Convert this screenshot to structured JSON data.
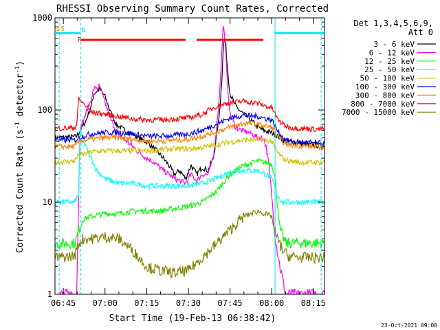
{
  "chart_data": {
    "type": "line",
    "title": "RHESSI Observing Summary Count Rates, Corrected",
    "xlabel": "Start Time (19-Feb-13 06:38:42)",
    "ylabel": "Corrected Count Rate (s⁻¹ detector⁻¹)",
    "ylabel_parts": [
      "Corrected Count Rate (s",
      "-1",
      " detector",
      "-1",
      ")"
    ],
    "ylog": true,
    "ylim": [
      1,
      1000
    ],
    "xlim_min": [
      402,
      499
    ],
    "x_tick_labels": [
      "06:45",
      "07:00",
      "07:15",
      "07:30",
      "07:45",
      "08:00",
      "08:15"
    ],
    "x_tick_min": [
      405,
      420,
      435,
      450,
      465,
      480,
      495
    ],
    "y_tick_labels": [
      "1",
      "10",
      "100",
      "1000"
    ],
    "y_tick_values": [
      1,
      10,
      100,
      1000
    ],
    "legend_header": [
      "Det 1,3,4,5,6,9,",
      "Att 0"
    ],
    "footer_date": "23-Oct-2021 09:08",
    "state_bars": [
      {
        "label": "I",
        "color": "#d4a017",
        "kind": "text"
      },
      {
        "label": "S",
        "color": "#d4a017",
        "kind": "text"
      },
      {
        "label": "N",
        "color": "#00e5ee",
        "segments": [
          [
            402,
            411
          ],
          [
            481,
            499
          ]
        ]
      },
      {
        "label": "F",
        "color": "#ff0000",
        "segments": [
          [
            411,
            449
          ],
          [
            453,
            477
          ]
        ]
      }
    ],
    "vlines": [
      {
        "x": 403.5,
        "color": "#00e5ee",
        "dash": true
      },
      {
        "x": 411.3,
        "color": "#00e5ee",
        "dash": true
      },
      {
        "x": 481.2,
        "color": "#00e5ee",
        "dash": false
      },
      {
        "x": 497.8,
        "color": "#00e5ee",
        "dash": true
      }
    ],
    "series": [
      {
        "name": "3 - 6 keV",
        "color": "#000000",
        "x": [
          402,
          409,
          409.8,
          411,
          413,
          415,
          416,
          418,
          420,
          422,
          424,
          427,
          430,
          432,
          435,
          437,
          439,
          441,
          443,
          445,
          447,
          449,
          451,
          453,
          455,
          457,
          459,
          461,
          462,
          462.5,
          463,
          463.5,
          464,
          465,
          467,
          469,
          471,
          473,
          475,
          477,
          479,
          481,
          483,
          485,
          487,
          489,
          491,
          493,
          495,
          497,
          499
        ],
        "y": [
          50,
          51,
          52,
          60,
          75,
          110,
          150,
          170,
          140,
          95,
          70,
          60,
          55,
          50,
          45,
          40,
          35,
          30,
          25,
          20,
          22,
          18,
          25,
          20,
          24,
          22,
          30,
          80,
          200,
          450,
          600,
          500,
          300,
          150,
          110,
          95,
          85,
          75,
          65,
          60,
          58,
          55,
          50,
          45,
          45,
          44,
          43,
          42,
          42,
          41,
          40
        ]
      },
      {
        "name": "6 - 12 keV",
        "color": "#ff00ff",
        "x": [
          402,
          409,
          409.8,
          411,
          413,
          415,
          416,
          418,
          420,
          422,
          424,
          427,
          430,
          432,
          435,
          437,
          439,
          441,
          443,
          445,
          447,
          449,
          451,
          453,
          455,
          457,
          459,
          461,
          462,
          462.5,
          463,
          463.5,
          464,
          465,
          467,
          469,
          471,
          473,
          475,
          477,
          478,
          479,
          480,
          481,
          482,
          483,
          485,
          487,
          489,
          491,
          493,
          495,
          497,
          499
        ],
        "y": [
          1,
          1,
          1,
          60,
          90,
          130,
          170,
          180,
          120,
          80,
          60,
          48,
          40,
          35,
          30,
          28,
          25,
          22,
          20,
          18,
          17,
          16,
          20,
          17,
          20,
          20,
          30,
          120,
          400,
          800,
          700,
          400,
          200,
          90,
          65,
          60,
          58,
          55,
          50,
          50,
          40,
          25,
          12,
          5,
          3,
          2,
          1,
          1,
          1,
          1,
          1,
          1,
          1,
          1
        ]
      },
      {
        "name": "12 - 25 keV",
        "color": "#00ff00",
        "x": [
          402,
          409,
          409.8,
          410.5,
          412,
          415,
          420,
          425,
          430,
          435,
          440,
          445,
          450,
          455,
          460,
          465,
          470,
          475,
          480,
          481,
          482,
          483,
          485,
          490,
          495,
          499
        ],
        "y": [
          3.5,
          3.6,
          4,
          5,
          6.5,
          7,
          7.5,
          7.5,
          8,
          8,
          8,
          8.5,
          9,
          10,
          13,
          20,
          25,
          28,
          26,
          20,
          10,
          5,
          3.6,
          3.6,
          3.6,
          3.6
        ]
      },
      {
        "name": "25 - 50 keV",
        "color": "#00ffff",
        "x": [
          402,
          409,
          409.8,
          410.5,
          411,
          413,
          415,
          417,
          420,
          425,
          430,
          435,
          440,
          445,
          450,
          455,
          460,
          463,
          466,
          470,
          475,
          478,
          480,
          481,
          482,
          484,
          486,
          490,
          495,
          499
        ],
        "y": [
          10,
          10,
          11,
          12,
          60,
          40,
          30,
          22,
          18,
          16,
          16,
          15,
          15,
          15,
          15,
          16,
          18,
          20,
          22,
          22,
          22,
          20,
          18,
          15,
          12,
          10,
          10,
          10,
          10,
          10
        ]
      },
      {
        "name": "50 - 100 keV",
        "color": "#d4c000",
        "x": [
          402,
          409,
          409.8,
          410.5,
          412,
          415,
          420,
          425,
          430,
          435,
          440,
          445,
          450,
          455,
          460,
          465,
          470,
          475,
          480,
          481,
          482,
          484,
          486,
          490,
          495,
          499
        ],
        "y": [
          27,
          28,
          30,
          33,
          33,
          35,
          36,
          36,
          36,
          36,
          37,
          38,
          38,
          39,
          42,
          45,
          47,
          48,
          46,
          40,
          35,
          30,
          28,
          27,
          27,
          27
        ]
      },
      {
        "name": "100 - 300 keV",
        "color": "#0000ff",
        "x": [
          402,
          409,
          409.8,
          410.5,
          412,
          415,
          420,
          425,
          430,
          435,
          440,
          445,
          450,
          455,
          460,
          465,
          470,
          475,
          480,
          481,
          482,
          484,
          486,
          490,
          495,
          499
        ],
        "y": [
          47,
          47,
          48,
          50,
          52,
          55,
          57,
          57,
          55,
          52,
          52,
          53,
          55,
          60,
          70,
          82,
          88,
          85,
          78,
          70,
          60,
          50,
          46,
          45,
          44,
          43
        ]
      },
      {
        "name": "300 - 800 keV",
        "color": "#ff8000",
        "x": [
          402,
          409,
          409.8,
          410.5,
          412,
          415,
          420,
          425,
          430,
          435,
          440,
          445,
          450,
          455,
          460,
          465,
          470,
          475,
          480,
          481,
          482,
          484,
          486,
          490,
          495,
          499
        ],
        "y": [
          40,
          40,
          42,
          45,
          47,
          48,
          50,
          50,
          48,
          46,
          46,
          47,
          48,
          52,
          58,
          65,
          72,
          70,
          65,
          60,
          52,
          45,
          42,
          41,
          40,
          39
        ]
      },
      {
        "name": "800 - 7000 keV",
        "color": "#ff0000",
        "x": [
          402,
          409,
          409.8,
          410.5,
          412,
          415,
          420,
          425,
          430,
          435,
          440,
          445,
          450,
          455,
          460,
          465,
          470,
          475,
          480,
          481,
          482,
          484,
          486,
          490,
          495,
          499
        ],
        "y": [
          63,
          64,
          70,
          130,
          120,
          95,
          90,
          85,
          80,
          78,
          78,
          80,
          82,
          90,
          110,
          120,
          125,
          118,
          105,
          95,
          80,
          70,
          65,
          63,
          62,
          62
        ]
      },
      {
        "name": "7000 - 15000 keV",
        "color": "#808000",
        "x": [
          402,
          409,
          409.8,
          410.5,
          412,
          415,
          420,
          425,
          430,
          435,
          440,
          445,
          450,
          455,
          460,
          465,
          470,
          475,
          480,
          481,
          482,
          484,
          486,
          490,
          495,
          499
        ],
        "y": [
          2.5,
          2.6,
          3,
          3.5,
          4,
          4,
          4.2,
          4,
          3,
          2,
          1.8,
          1.7,
          1.8,
          2.5,
          3.5,
          5,
          7,
          8,
          7,
          5,
          4,
          3,
          2.6,
          2.5,
          2.5,
          2.5
        ]
      }
    ]
  }
}
